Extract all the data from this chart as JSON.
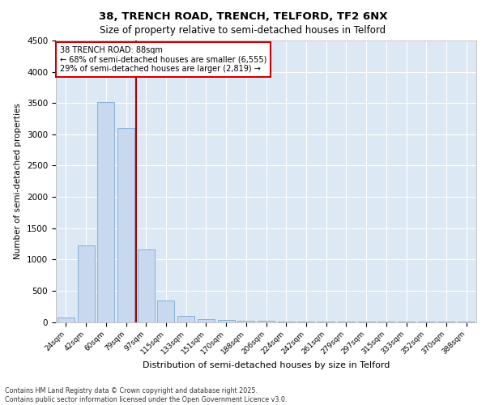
{
  "title_line1": "38, TRENCH ROAD, TRENCH, TELFORD, TF2 6NX",
  "title_line2": "Size of property relative to semi-detached houses in Telford",
  "xlabel": "Distribution of semi-detached houses by size in Telford",
  "ylabel": "Number of semi-detached properties",
  "categories": [
    "24sqm",
    "42sqm",
    "60sqm",
    "79sqm",
    "97sqm",
    "115sqm",
    "133sqm",
    "151sqm",
    "170sqm",
    "188sqm",
    "206sqm",
    "224sqm",
    "242sqm",
    "261sqm",
    "279sqm",
    "297sqm",
    "315sqm",
    "333sqm",
    "352sqm",
    "370sqm",
    "388sqm"
  ],
  "values": [
    75,
    1220,
    3520,
    3100,
    1160,
    340,
    100,
    50,
    30,
    20,
    15,
    10,
    5,
    3,
    2,
    2,
    1,
    1,
    1,
    1,
    1
  ],
  "bar_color": "#c8d8ee",
  "bar_edge_color": "#7aaad0",
  "vline_x": 3.5,
  "vline_color": "#aa0000",
  "annotation_title": "38 TRENCH ROAD: 88sqm",
  "annotation_line1": "← 68% of semi-detached houses are smaller (6,555)",
  "annotation_line2": "29% of semi-detached houses are larger (2,819) →",
  "annotation_border_color": "#cc0000",
  "ylim": [
    0,
    4500
  ],
  "yticks": [
    0,
    500,
    1000,
    1500,
    2000,
    2500,
    3000,
    3500,
    4000,
    4500
  ],
  "footer_line1": "Contains HM Land Registry data © Crown copyright and database right 2025.",
  "footer_line2": "Contains public sector information licensed under the Open Government Licence v3.0.",
  "plot_background": "#dde8f5"
}
